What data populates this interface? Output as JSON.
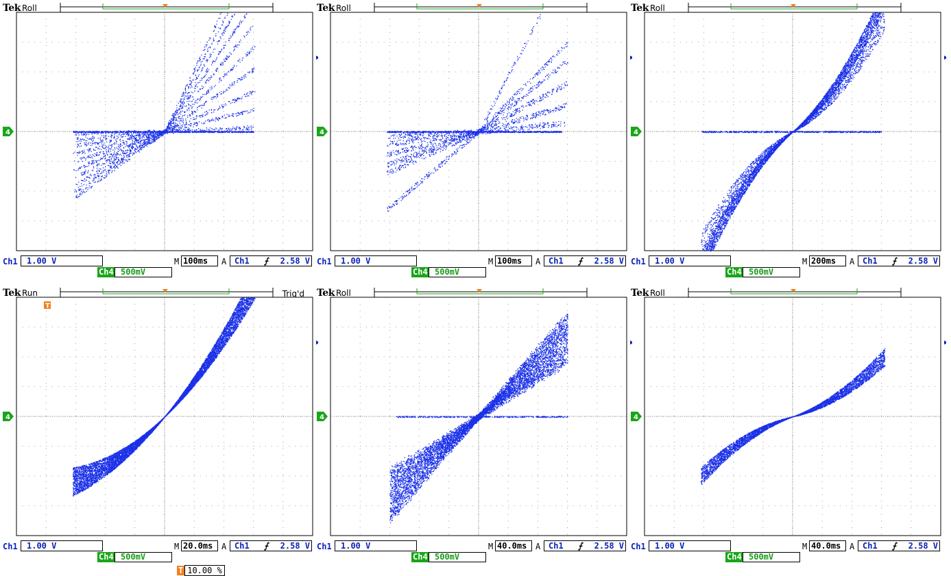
{
  "colors": {
    "trace": "#1a30e8",
    "ch1": "#0a22b8",
    "ch4": "#1aa51a",
    "trigger": "#f08020",
    "grid": "#808080"
  },
  "panels": [
    {
      "brand": "Tek",
      "mode": "Roll",
      "trig_status": "",
      "ch1_scale": "1.00 V",
      "ch4_scale": "500mV",
      "timebase_prefix": "M",
      "timebase": "100ms",
      "trig_prefix": "A",
      "trig_source": "Ch1",
      "trig_slope": "⨍",
      "trig_level": "2.58 V",
      "ch1_label": "Ch1",
      "ch4_label": "Ch4",
      "ch4_marker": "4",
      "trigger_percent": ""
    },
    {
      "brand": "Tek",
      "mode": "Roll",
      "trig_status": "",
      "ch1_scale": "1.00 V",
      "ch4_scale": "500mV",
      "timebase_prefix": "M",
      "timebase": "100ms",
      "trig_prefix": "A",
      "trig_source": "Ch1",
      "trig_slope": "⨍",
      "trig_level": "2.58 V",
      "ch1_label": "Ch1",
      "ch4_label": "Ch4",
      "ch4_marker": "4",
      "trigger_percent": ""
    },
    {
      "brand": "Tek",
      "mode": "Roll",
      "trig_status": "",
      "ch1_scale": "1.00 V",
      "ch4_scale": "500mV",
      "timebase_prefix": "M",
      "timebase": "200ms",
      "trig_prefix": "A",
      "trig_source": "Ch1",
      "trig_slope": "⨍",
      "trig_level": "2.58 V",
      "ch1_label": "Ch1",
      "ch4_label": "Ch4",
      "ch4_marker": "4",
      "trigger_percent": ""
    },
    {
      "brand": "Tek",
      "mode": "Run",
      "trig_status": "Trig'd",
      "ch1_scale": "1.00 V",
      "ch4_scale": "500mV",
      "timebase_prefix": "M",
      "timebase": "20.0ms",
      "trig_prefix": "A",
      "trig_source": "Ch1",
      "trig_slope": "⨍",
      "trig_level": "2.58 V",
      "ch1_label": "Ch1",
      "ch4_label": "Ch4",
      "ch4_marker": "4",
      "trigger_marker": "T",
      "trigger_percent": "10.00 %"
    },
    {
      "brand": "Tek",
      "mode": "Roll",
      "trig_status": "",
      "ch1_scale": "1.00 V",
      "ch4_scale": "500mV",
      "timebase_prefix": "M",
      "timebase": "40.0ms",
      "trig_prefix": "A",
      "trig_source": "Ch1",
      "trig_slope": "⨍",
      "trig_level": "2.58 V",
      "ch1_label": "Ch1",
      "ch4_label": "Ch4",
      "ch4_marker": "4",
      "trigger_percent": ""
    },
    {
      "brand": "Tek",
      "mode": "Roll",
      "trig_status": "",
      "ch1_scale": "1.00 V",
      "ch4_scale": "500mV",
      "timebase_prefix": "M",
      "timebase": "40.0ms",
      "trig_prefix": "A",
      "trig_source": "Ch1",
      "trig_slope": "⨍",
      "trig_level": "2.58 V",
      "ch1_label": "Ch1",
      "ch4_label": "Ch4",
      "ch4_marker": "4",
      "trigger_percent": ""
    }
  ],
  "traces": [
    {
      "shape": "fan-steep"
    },
    {
      "shape": "fan-sparse"
    },
    {
      "shape": "s-curve-wide"
    },
    {
      "shape": "diagonal-dense"
    },
    {
      "shape": "diagonal-fan"
    },
    {
      "shape": "s-curve-narrow"
    }
  ]
}
